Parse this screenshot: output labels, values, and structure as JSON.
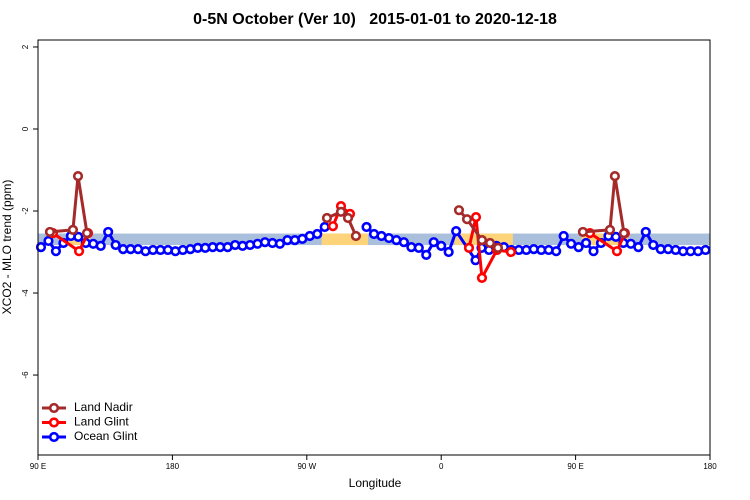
{
  "chart_data": {
    "type": "line",
    "title": "0-5N October (Ver 10)   2015-01-01 to 2020-12-18",
    "xlabel": "Longitude",
    "ylabel": "XCO2 - MLO trend (ppm)",
    "xlim": [
      90,
      540
    ],
    "ylim": [
      -7.95,
      2.17
    ],
    "xticks": [
      {
        "value": 90,
        "label": "90 E"
      },
      {
        "value": 180,
        "label": "180"
      },
      {
        "value": 270,
        "label": "90 W"
      },
      {
        "value": 360,
        "label": "0"
      },
      {
        "value": 450,
        "label": "90 E"
      },
      {
        "value": 540,
        "label": "180"
      }
    ],
    "yticks": [
      -6,
      -4,
      -2,
      0,
      2
    ],
    "legend": "lower left",
    "band": {
      "range": [
        -2.55,
        -2.83
      ],
      "color": "#a9bfdc"
    },
    "highlights": {
      "color": "#fdd47a",
      "ranges": [
        [
          110,
          125
        ],
        [
          280,
          311
        ],
        [
          369,
          408
        ],
        [
          454,
          485
        ]
      ]
    },
    "series": [
      {
        "name": "Land Nadir",
        "color": "#a52a2a",
        "x": [
          98,
          113.4,
          116.8,
          122.8,
          200,
          283.5,
          292.9,
          297.6,
          302.9,
          340,
          371.9,
          377.3,
          387.3,
          392.7,
          398,
          430,
          454.9,
          473,
          476.3,
          482.4
        ],
        "values": [
          -2.51,
          -2.46,
          -1.15,
          -2.54,
          null,
          -2.17,
          -2.02,
          -2.17,
          -2.61,
          null,
          -1.98,
          -2.2,
          -2.71,
          -2.78,
          -2.9,
          null,
          -2.51,
          -2.46,
          -1.15,
          -2.54
        ]
      },
      {
        "name": "Land Glint",
        "color": "#ff0000",
        "x": [
          100,
          117.5,
          123.5,
          200,
          287.5,
          292.9,
          298.9,
          340,
          378.6,
          383.3,
          387.3,
          397.3,
          406.7,
          430,
          459.6,
          477.7,
          483
        ],
        "values": [
          -2.54,
          -2.98,
          -2.54,
          null,
          -2.37,
          -1.88,
          -2.07,
          null,
          -2.9,
          -2.15,
          -3.63,
          -2.95,
          -3.0,
          null,
          -2.54,
          -2.98,
          -2.54
        ]
      },
      {
        "name": "Ocean Glint",
        "color": "#0000ff",
        "x": [
          92,
          97,
          102,
          107,
          112,
          117,
          122,
          127,
          132,
          137,
          142,
          147,
          152,
          157,
          162,
          167,
          172,
          177,
          182,
          187,
          192,
          197,
          202,
          207,
          212,
          217,
          222,
          227,
          232,
          237,
          242,
          247,
          252,
          257,
          262,
          267,
          272,
          277,
          282,
          296,
          310,
          315,
          320,
          325,
          330,
          335,
          340,
          345,
          350,
          355,
          360,
          365,
          370,
          383,
          387,
          392,
          397,
          402,
          407,
          412,
          417,
          422,
          427,
          432,
          437,
          442,
          447,
          452,
          457,
          462,
          467,
          472,
          477,
          482,
          487,
          492,
          497,
          502,
          507,
          512,
          517,
          522,
          527,
          532,
          537
        ],
        "values": [
          -2.88,
          -2.73,
          -2.98,
          -2.78,
          -2.61,
          -2.63,
          -2.78,
          -2.8,
          -2.85,
          -2.51,
          -2.83,
          -2.93,
          -2.93,
          -2.93,
          -2.98,
          -2.95,
          -2.95,
          -2.95,
          -2.98,
          -2.95,
          -2.93,
          -2.9,
          -2.9,
          -2.88,
          -2.88,
          -2.88,
          -2.83,
          -2.85,
          -2.83,
          -2.8,
          -2.76,
          -2.78,
          -2.8,
          -2.71,
          -2.71,
          -2.68,
          -2.61,
          -2.56,
          -2.39,
          null,
          -2.39,
          -2.56,
          -2.61,
          -2.66,
          -2.71,
          -2.76,
          -2.88,
          -2.9,
          -3.07,
          -2.76,
          -2.85,
          -3.0,
          -2.49,
          -3.2,
          -2.9,
          -2.95,
          -2.85,
          -2.88,
          -2.95,
          -2.95,
          -2.95,
          -2.93,
          -2.95,
          -2.95,
          -2.98,
          -2.61,
          -2.8,
          -2.88,
          -2.78,
          -2.98,
          -2.78,
          -2.61,
          -2.63,
          -2.78,
          -2.8,
          -2.88,
          -2.51,
          -2.83,
          -2.93,
          -2.93,
          -2.95,
          -2.98,
          -2.98,
          -2.98,
          -2.95
        ]
      }
    ]
  }
}
